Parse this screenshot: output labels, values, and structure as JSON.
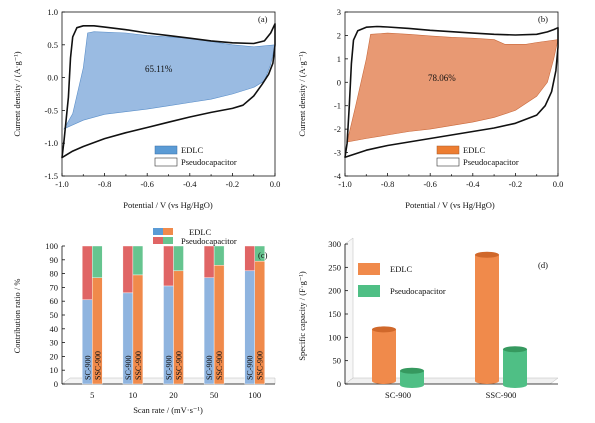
{
  "colors": {
    "blue_fill": "#8fb4df",
    "blue_stroke": "#5b8fc9",
    "orange_fill": "#e58e64",
    "orange_stroke": "#c96a3d",
    "red_fill": "#e06565",
    "green_fill": "#66c48f",
    "bar_orange": "#f08a4b",
    "bar_green": "#4fbf85",
    "legend_blue": "#5b9bd5",
    "legend_orange": "#ed7d31"
  },
  "chart_data": [
    {
      "panel": "(a)",
      "type": "area",
      "xlabel": "Potential / V (vs Hg/HgO)",
      "ylabel": "Current density / (A·g⁻¹)",
      "xlim": [
        -1.0,
        0.0
      ],
      "ylim": [
        -1.5,
        1.0
      ],
      "xticks": [
        "-1.0",
        "-0.8",
        "-0.6",
        "-0.4",
        "-0.2",
        "0.0"
      ],
      "yticks": [
        "-1.5",
        "-1.0",
        "-0.5",
        "0.0",
        "0.5",
        "1.0"
      ],
      "annotation": "65.11%",
      "legend": [
        "EDLC",
        "Pseudocapacitor"
      ],
      "legend_position": "bottom-right",
      "cv_loop": [
        [
          -1.0,
          -1.22
        ],
        [
          -0.99,
          -0.95
        ],
        [
          -0.97,
          -0.3
        ],
        [
          -0.96,
          0.3
        ],
        [
          -0.95,
          0.62
        ],
        [
          -0.93,
          0.76
        ],
        [
          -0.9,
          0.79
        ],
        [
          -0.85,
          0.79
        ],
        [
          -0.8,
          0.77
        ],
        [
          -0.7,
          0.73
        ],
        [
          -0.6,
          0.68
        ],
        [
          -0.5,
          0.64
        ],
        [
          -0.4,
          0.6
        ],
        [
          -0.3,
          0.56
        ],
        [
          -0.2,
          0.53
        ],
        [
          -0.1,
          0.52
        ],
        [
          -0.05,
          0.56
        ],
        [
          -0.02,
          0.68
        ],
        [
          0.0,
          0.82
        ],
        [
          0.0,
          0.5
        ],
        [
          -0.01,
          0.22
        ],
        [
          -0.03,
          0.05
        ],
        [
          -0.06,
          -0.1
        ],
        [
          -0.1,
          -0.28
        ],
        [
          -0.15,
          -0.42
        ],
        [
          -0.2,
          -0.47
        ],
        [
          -0.3,
          -0.53
        ],
        [
          -0.4,
          -0.6
        ],
        [
          -0.5,
          -0.68
        ],
        [
          -0.6,
          -0.76
        ],
        [
          -0.7,
          -0.84
        ],
        [
          -0.8,
          -0.93
        ],
        [
          -0.9,
          -1.05
        ],
        [
          -0.95,
          -1.12
        ],
        [
          -1.0,
          -1.22
        ]
      ],
      "edlc_area": [
        [
          -0.99,
          -0.78
        ],
        [
          -0.95,
          -0.55
        ],
        [
          -0.9,
          0.15
        ],
        [
          -0.88,
          0.68
        ],
        [
          -0.85,
          0.7
        ],
        [
          -0.7,
          0.68
        ],
        [
          -0.6,
          0.64
        ],
        [
          -0.5,
          0.62
        ],
        [
          -0.4,
          0.6
        ],
        [
          -0.3,
          0.55
        ],
        [
          -0.2,
          0.5
        ],
        [
          -0.1,
          0.47
        ],
        [
          0.0,
          0.5
        ],
        [
          -0.02,
          0.2
        ],
        [
          -0.05,
          -0.05
        ],
        [
          -0.1,
          -0.15
        ],
        [
          -0.2,
          -0.25
        ],
        [
          -0.3,
          -0.33
        ],
        [
          -0.4,
          -0.38
        ],
        [
          -0.5,
          -0.43
        ],
        [
          -0.6,
          -0.48
        ],
        [
          -0.7,
          -0.52
        ],
        [
          -0.8,
          -0.56
        ],
        [
          -0.9,
          -0.65
        ],
        [
          -0.99,
          -0.78
        ]
      ]
    },
    {
      "panel": "(b)",
      "type": "area",
      "xlabel": "Potential / V (vs Hg/HgO)",
      "ylabel": "Current density / (A·g⁻¹)",
      "xlim": [
        -1.0,
        0.0
      ],
      "ylim": [
        -4,
        3
      ],
      "xticks": [
        "-1.0",
        "-0.8",
        "-0.6",
        "-0.4",
        "-0.2",
        "0.0"
      ],
      "yticks": [
        "-4",
        "-3",
        "-2",
        "-1",
        "0",
        "1",
        "2",
        "3"
      ],
      "annotation": "78.06%",
      "legend": [
        "EDLC",
        "Pseudocapacitor"
      ],
      "legend_position": "bottom-right",
      "cv_loop": [
        [
          -1.0,
          -3.2
        ],
        [
          -0.99,
          -2.6
        ],
        [
          -0.98,
          -1.0
        ],
        [
          -0.97,
          0.8
        ],
        [
          -0.96,
          1.8
        ],
        [
          -0.94,
          2.2
        ],
        [
          -0.9,
          2.35
        ],
        [
          -0.85,
          2.38
        ],
        [
          -0.8,
          2.36
        ],
        [
          -0.7,
          2.3
        ],
        [
          -0.6,
          2.22
        ],
        [
          -0.5,
          2.16
        ],
        [
          -0.4,
          2.1
        ],
        [
          -0.3,
          2.05
        ],
        [
          -0.2,
          2.02
        ],
        [
          -0.1,
          2.05
        ],
        [
          -0.05,
          2.15
        ],
        [
          -0.02,
          2.25
        ],
        [
          0.0,
          2.33
        ],
        [
          0.0,
          1.5
        ],
        [
          -0.01,
          0.5
        ],
        [
          -0.03,
          -0.4
        ],
        [
          -0.06,
          -1.0
        ],
        [
          -0.1,
          -1.4
        ],
        [
          -0.2,
          -1.75
        ],
        [
          -0.3,
          -1.95
        ],
        [
          -0.4,
          -2.1
        ],
        [
          -0.5,
          -2.25
        ],
        [
          -0.6,
          -2.4
        ],
        [
          -0.7,
          -2.55
        ],
        [
          -0.8,
          -2.7
        ],
        [
          -0.9,
          -2.9
        ],
        [
          -0.95,
          -3.05
        ],
        [
          -1.0,
          -3.2
        ]
      ],
      "edlc_area": [
        [
          -0.99,
          -2.55
        ],
        [
          -0.95,
          -1.0
        ],
        [
          -0.9,
          1.0
        ],
        [
          -0.88,
          2.05
        ],
        [
          -0.8,
          2.1
        ],
        [
          -0.7,
          2.05
        ],
        [
          -0.6,
          1.98
        ],
        [
          -0.5,
          1.92
        ],
        [
          -0.4,
          1.88
        ],
        [
          -0.3,
          1.82
        ],
        [
          -0.25,
          1.62
        ],
        [
          -0.15,
          1.62
        ],
        [
          -0.1,
          1.7
        ],
        [
          0.0,
          1.82
        ],
        [
          -0.02,
          1.0
        ],
        [
          -0.05,
          0.0
        ],
        [
          -0.1,
          -0.6
        ],
        [
          -0.2,
          -1.2
        ],
        [
          -0.3,
          -1.5
        ],
        [
          -0.4,
          -1.7
        ],
        [
          -0.5,
          -1.85
        ],
        [
          -0.6,
          -2.0
        ],
        [
          -0.7,
          -2.1
        ],
        [
          -0.8,
          -2.25
        ],
        [
          -0.9,
          -2.4
        ],
        [
          -0.99,
          -2.55
        ]
      ]
    },
    {
      "panel": "(c)",
      "type": "bar",
      "xlabel": "Scan rate / (mV·s⁻¹)",
      "ylabel": "Contribution ratio / %",
      "ylim": [
        0,
        100
      ],
      "yticks": [
        "0",
        "10",
        "20",
        "30",
        "40",
        "50",
        "60",
        "70",
        "80",
        "90",
        "100"
      ],
      "categories": [
        "5",
        "10",
        "20",
        "50",
        "100"
      ],
      "bar_labels": [
        "SC-900",
        "SSC-900"
      ],
      "legend": [
        "EDLC",
        "Pseudocapacitor"
      ],
      "legend_position": "top-right",
      "series": [
        {
          "name": "SC-900",
          "edlc": [
            61,
            66,
            71,
            77,
            82
          ]
        },
        {
          "name": "SSC-900",
          "edlc": [
            77,
            79,
            82,
            86,
            89
          ]
        }
      ]
    },
    {
      "panel": "(d)",
      "type": "bar",
      "xlabel": "",
      "ylabel": "Specific capacity / (F·g⁻¹)",
      "ylim": [
        0,
        300
      ],
      "yticks": [
        "0",
        "50",
        "100",
        "150",
        "200",
        "250",
        "300"
      ],
      "categories": [
        "SC-900",
        "SSC-900"
      ],
      "legend": [
        "EDLC",
        "Pseudocapacitor"
      ],
      "legend_position": "top-left",
      "series": [
        {
          "name": "EDLC",
          "values": [
            117,
            277
          ]
        },
        {
          "name": "Pseudocapacitor",
          "values": [
            37,
            83
          ]
        }
      ]
    }
  ]
}
